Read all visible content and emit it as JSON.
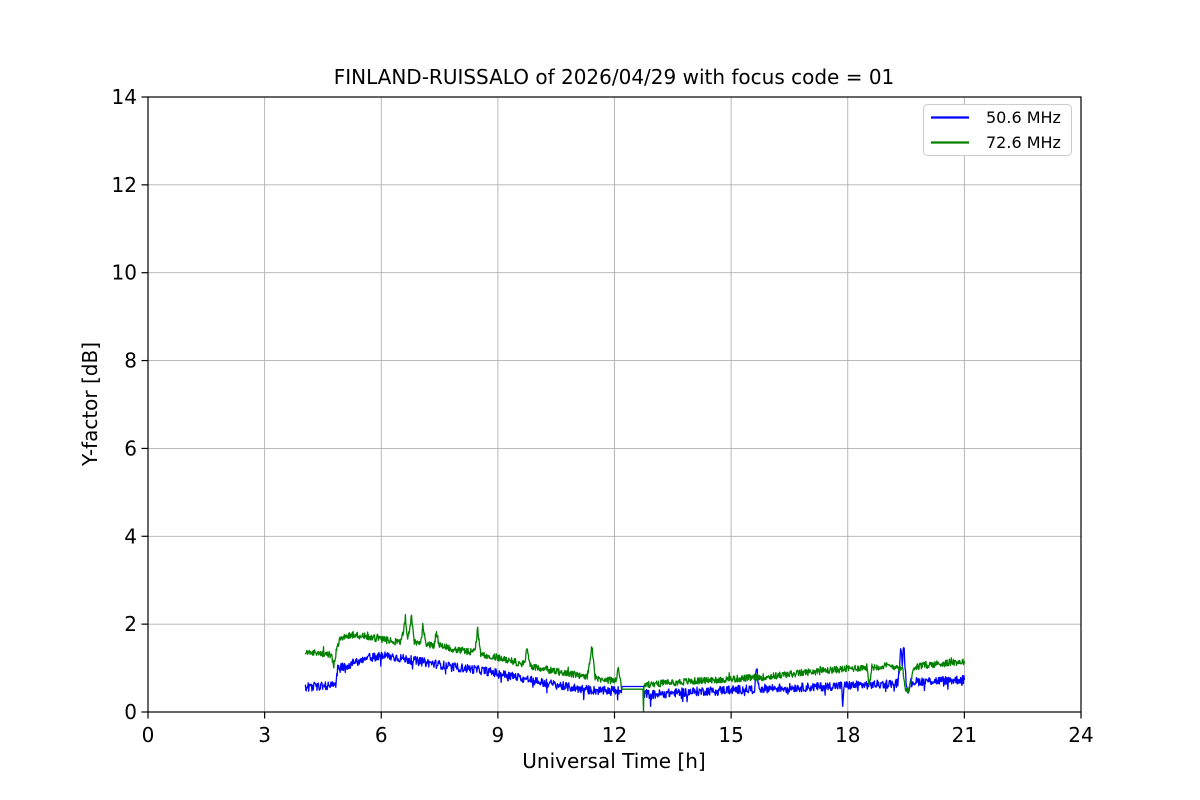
{
  "chart_data": {
    "type": "line",
    "title": "FINLAND-RUISSALO of 2026/04/29 with focus code = 01",
    "xlabel": "Universal Time [h]",
    "ylabel": "Y-factor [dB]",
    "xlim": [
      0,
      24
    ],
    "ylim": [
      0,
      14
    ],
    "xticks": [
      0,
      3,
      6,
      9,
      12,
      15,
      18,
      21,
      24
    ],
    "yticks": [
      0,
      2,
      4,
      6,
      8,
      10,
      12,
      14
    ],
    "grid": true,
    "grid_color": "#b0b0b0",
    "axis_color": "#000000",
    "background_color": "#ffffff",
    "legend_position": "upper right",
    "data_time_range": [
      4.05,
      21.0
    ],
    "series": [
      {
        "name": "50.6 MHz",
        "color": "#0000ff",
        "noise": 0.1,
        "points": [
          [
            4.05,
            0.56
          ],
          [
            4.3,
            0.58
          ],
          [
            4.55,
            0.6
          ],
          [
            4.78,
            0.62
          ],
          [
            4.82,
            0.68
          ],
          [
            4.88,
            0.98
          ],
          [
            5.1,
            1.05
          ],
          [
            5.4,
            1.15
          ],
          [
            5.7,
            1.24
          ],
          [
            6.0,
            1.28
          ],
          [
            6.3,
            1.26
          ],
          [
            6.6,
            1.21
          ],
          [
            6.9,
            1.16
          ],
          [
            7.2,
            1.12
          ],
          [
            7.5,
            1.08
          ],
          [
            7.8,
            1.03
          ],
          [
            8.1,
            1.0
          ],
          [
            8.4,
            0.97
          ],
          [
            8.7,
            0.93
          ],
          [
            9.0,
            0.88
          ],
          [
            9.3,
            0.83
          ],
          [
            9.6,
            0.77
          ],
          [
            9.9,
            0.72
          ],
          [
            10.2,
            0.66
          ],
          [
            10.5,
            0.62
          ],
          [
            10.8,
            0.57
          ],
          [
            11.1,
            0.53
          ],
          [
            11.4,
            0.5
          ],
          [
            11.7,
            0.48
          ],
          [
            12.0,
            0.5
          ],
          [
            12.15,
            0.48
          ],
          [
            12.2,
            0.58,
            0
          ],
          [
            12.75,
            0.58,
            0
          ],
          [
            12.76,
            0.42
          ],
          [
            13.0,
            0.4
          ],
          [
            13.3,
            0.42
          ],
          [
            13.6,
            0.44
          ],
          [
            14.0,
            0.46
          ],
          [
            14.4,
            0.48
          ],
          [
            14.8,
            0.5
          ],
          [
            15.2,
            0.51
          ],
          [
            15.6,
            0.52
          ],
          [
            15.66,
            0.98
          ],
          [
            15.72,
            0.53
          ],
          [
            16.0,
            0.54
          ],
          [
            16.4,
            0.55
          ],
          [
            16.8,
            0.56
          ],
          [
            17.2,
            0.57
          ],
          [
            17.6,
            0.59
          ],
          [
            17.84,
            0.6
          ],
          [
            17.87,
            0.14
          ],
          [
            17.9,
            0.6
          ],
          [
            18.2,
            0.61
          ],
          [
            18.6,
            0.62
          ],
          [
            19.0,
            0.64
          ],
          [
            19.3,
            0.66
          ],
          [
            19.36,
            1.5
          ],
          [
            19.4,
            1.1
          ],
          [
            19.44,
            1.55
          ],
          [
            19.5,
            0.72
          ],
          [
            19.55,
            0.5
          ],
          [
            19.62,
            0.68
          ],
          [
            19.9,
            0.7
          ],
          [
            20.2,
            0.71
          ],
          [
            20.6,
            0.72
          ],
          [
            21.0,
            0.74
          ]
        ]
      },
      {
        "name": "72.6 MHz",
        "color": "#008000",
        "noise": 0.08,
        "points": [
          [
            4.05,
            1.33
          ],
          [
            4.3,
            1.34
          ],
          [
            4.55,
            1.33
          ],
          [
            4.72,
            1.3
          ],
          [
            4.78,
            1.08
          ],
          [
            4.84,
            1.38
          ],
          [
            4.92,
            1.65
          ],
          [
            5.05,
            1.73
          ],
          [
            5.3,
            1.76
          ],
          [
            5.6,
            1.72
          ],
          [
            5.9,
            1.67
          ],
          [
            6.2,
            1.62
          ],
          [
            6.5,
            1.59
          ],
          [
            6.62,
            2.05
          ],
          [
            6.68,
            1.62
          ],
          [
            6.78,
            2.18
          ],
          [
            6.85,
            1.6
          ],
          [
            7.0,
            1.56
          ],
          [
            7.08,
            1.9
          ],
          [
            7.15,
            1.55
          ],
          [
            7.35,
            1.52
          ],
          [
            7.42,
            1.78
          ],
          [
            7.5,
            1.5
          ],
          [
            7.8,
            1.45
          ],
          [
            8.1,
            1.4
          ],
          [
            8.4,
            1.36
          ],
          [
            8.48,
            1.88
          ],
          [
            8.55,
            1.33
          ],
          [
            8.8,
            1.28
          ],
          [
            9.1,
            1.22
          ],
          [
            9.4,
            1.15
          ],
          [
            9.68,
            1.08
          ],
          [
            9.75,
            1.5
          ],
          [
            9.82,
            1.05
          ],
          [
            10.1,
            1.0
          ],
          [
            10.4,
            0.94
          ],
          [
            10.7,
            0.89
          ],
          [
            11.0,
            0.85
          ],
          [
            11.3,
            0.8
          ],
          [
            11.42,
            1.48
          ],
          [
            11.5,
            0.78
          ],
          [
            11.8,
            0.73
          ],
          [
            12.05,
            0.7
          ],
          [
            12.1,
            1.05
          ],
          [
            12.15,
            0.68
          ],
          [
            12.2,
            0.52,
            0
          ],
          [
            12.73,
            0.52,
            0
          ],
          [
            12.745,
            0.02,
            0
          ],
          [
            12.76,
            0.6
          ],
          [
            13.0,
            0.64
          ],
          [
            13.4,
            0.67
          ],
          [
            13.8,
            0.69
          ],
          [
            14.2,
            0.71
          ],
          [
            14.6,
            0.73
          ],
          [
            15.0,
            0.75
          ],
          [
            15.4,
            0.77
          ],
          [
            15.8,
            0.79
          ],
          [
            16.2,
            0.83
          ],
          [
            16.6,
            0.87
          ],
          [
            17.0,
            0.91
          ],
          [
            17.4,
            0.94
          ],
          [
            17.8,
            0.97
          ],
          [
            18.2,
            1.0
          ],
          [
            18.5,
            1.02
          ],
          [
            18.55,
            0.6
          ],
          [
            18.62,
            1.02
          ],
          [
            19.0,
            1.05
          ],
          [
            19.3,
            1.03
          ],
          [
            19.42,
            0.95
          ],
          [
            19.5,
            0.48
          ],
          [
            19.58,
            0.52
          ],
          [
            19.68,
            1.0
          ],
          [
            20.0,
            1.07
          ],
          [
            20.4,
            1.1
          ],
          [
            20.7,
            1.13
          ],
          [
            21.0,
            1.15
          ]
        ]
      }
    ]
  }
}
